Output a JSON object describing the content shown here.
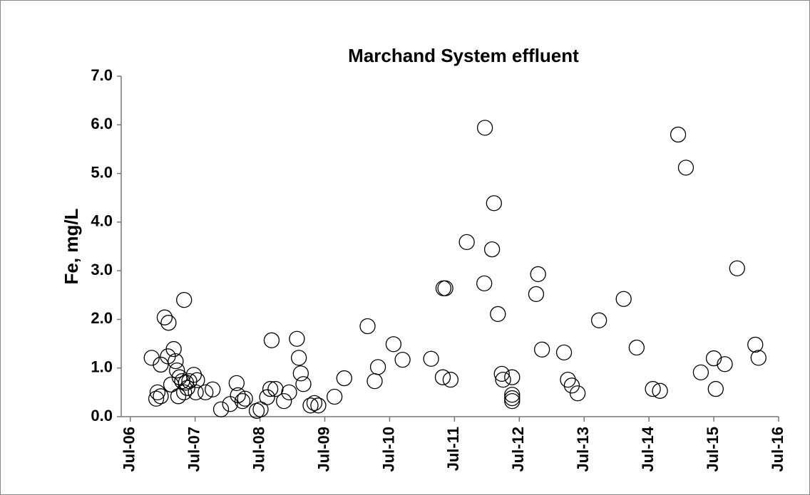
{
  "chart_data": {
    "type": "scatter",
    "title": "Marchand System effluent",
    "y_label": "Fe, mg/L",
    "series": [
      {
        "color": "#000000",
        "x": [
          2006.83,
          2006.9,
          2006.92,
          2006.97,
          2006.97,
          2007.03,
          2007.09,
          2007.08,
          2007.13,
          2007.17,
          2007.2,
          2007.22,
          2007.24,
          2007.26,
          2007.3,
          2007.33,
          2007.33,
          2007.36,
          2007.38,
          2007.41,
          2007.48,
          2007.51,
          2007.53,
          2007.66,
          2007.77,
          2007.9,
          2008.04,
          2008.14,
          2008.16,
          2008.23,
          2008.27,
          2008.45,
          2008.51,
          2008.61,
          2008.66,
          2008.68,
          2008.74,
          2008.87,
          2008.95,
          2009.07,
          2009.1,
          2009.13,
          2009.17,
          2009.28,
          2009.34,
          2009.4,
          2009.65,
          2009.8,
          2010.16,
          2010.27,
          2010.32,
          2010.56,
          2010.7,
          2011.14,
          2011.32,
          2011.33,
          2011.36,
          2011.44,
          2011.69,
          2011.97,
          2011.96,
          2012.08,
          2012.11,
          2012.17,
          2012.23,
          2012.25,
          2012.39,
          2012.39,
          2012.39,
          2012.39,
          2012.76,
          2012.79,
          2012.85,
          2013.19,
          2013.25,
          2013.31,
          2013.4,
          2013.73,
          2014.11,
          2014.31,
          2014.56,
          2014.67,
          2014.95,
          2015.07,
          2015.3,
          2015.5,
          2015.53,
          2015.67,
          2015.86,
          2016.14,
          2016.19
        ],
        "values": [
          1.21,
          0.37,
          0.5,
          1.07,
          0.42,
          2.04,
          1.93,
          1.24,
          0.66,
          1.39,
          1.14,
          0.95,
          0.42,
          0.81,
          0.73,
          2.4,
          0.5,
          0.7,
          0.59,
          0.73,
          0.86,
          0.5,
          0.75,
          0.5,
          0.56,
          0.15,
          0.26,
          0.69,
          0.44,
          0.32,
          0.37,
          0.12,
          0.15,
          0.4,
          0.57,
          1.57,
          0.57,
          0.32,
          0.5,
          1.6,
          1.21,
          0.89,
          0.67,
          0.23,
          0.28,
          0.23,
          0.41,
          0.79,
          1.86,
          0.73,
          1.02,
          1.49,
          1.17,
          1.19,
          0.81,
          2.64,
          2.64,
          0.76,
          3.59,
          5.94,
          2.74,
          3.44,
          4.39,
          2.11,
          0.88,
          0.76,
          0.81,
          0.45,
          0.38,
          0.32,
          2.52,
          2.93,
          1.38,
          1.32,
          0.76,
          0.64,
          0.48,
          1.98,
          2.42,
          1.42,
          0.57,
          0.53,
          5.8,
          5.12,
          0.91,
          1.2,
          0.57,
          1.08,
          3.05,
          1.48,
          1.21
        ]
      }
    ],
    "xlim": [
      2006.36,
      2016.5
    ],
    "xticks": [
      {
        "value": 2006.5,
        "label": "Jul-06"
      },
      {
        "value": 2007.5,
        "label": "Jul-07"
      },
      {
        "value": 2008.5,
        "label": "Jul-08"
      },
      {
        "value": 2009.5,
        "label": "Jul-09"
      },
      {
        "value": 2010.5,
        "label": "Jul-10"
      },
      {
        "value": 2011.5,
        "label": "Jul-11"
      },
      {
        "value": 2012.5,
        "label": "Jul-12"
      },
      {
        "value": 2013.5,
        "label": "Jul-13"
      },
      {
        "value": 2014.5,
        "label": "Jul-14"
      },
      {
        "value": 2015.5,
        "label": "Jul-15"
      },
      {
        "value": 2016.5,
        "label": "Jul-16"
      }
    ],
    "ylim": [
      0,
      7
    ],
    "yticks": [
      {
        "value": 0,
        "label": "0.0"
      },
      {
        "value": 1,
        "label": "1.0"
      },
      {
        "value": 2,
        "label": "2.0"
      },
      {
        "value": 3,
        "label": "3.0"
      },
      {
        "value": 4,
        "label": "4.0"
      },
      {
        "value": 5,
        "label": "5.0"
      },
      {
        "value": 6,
        "label": "6.0"
      },
      {
        "value": 7,
        "label": "7.0"
      }
    ],
    "grid": false
  }
}
